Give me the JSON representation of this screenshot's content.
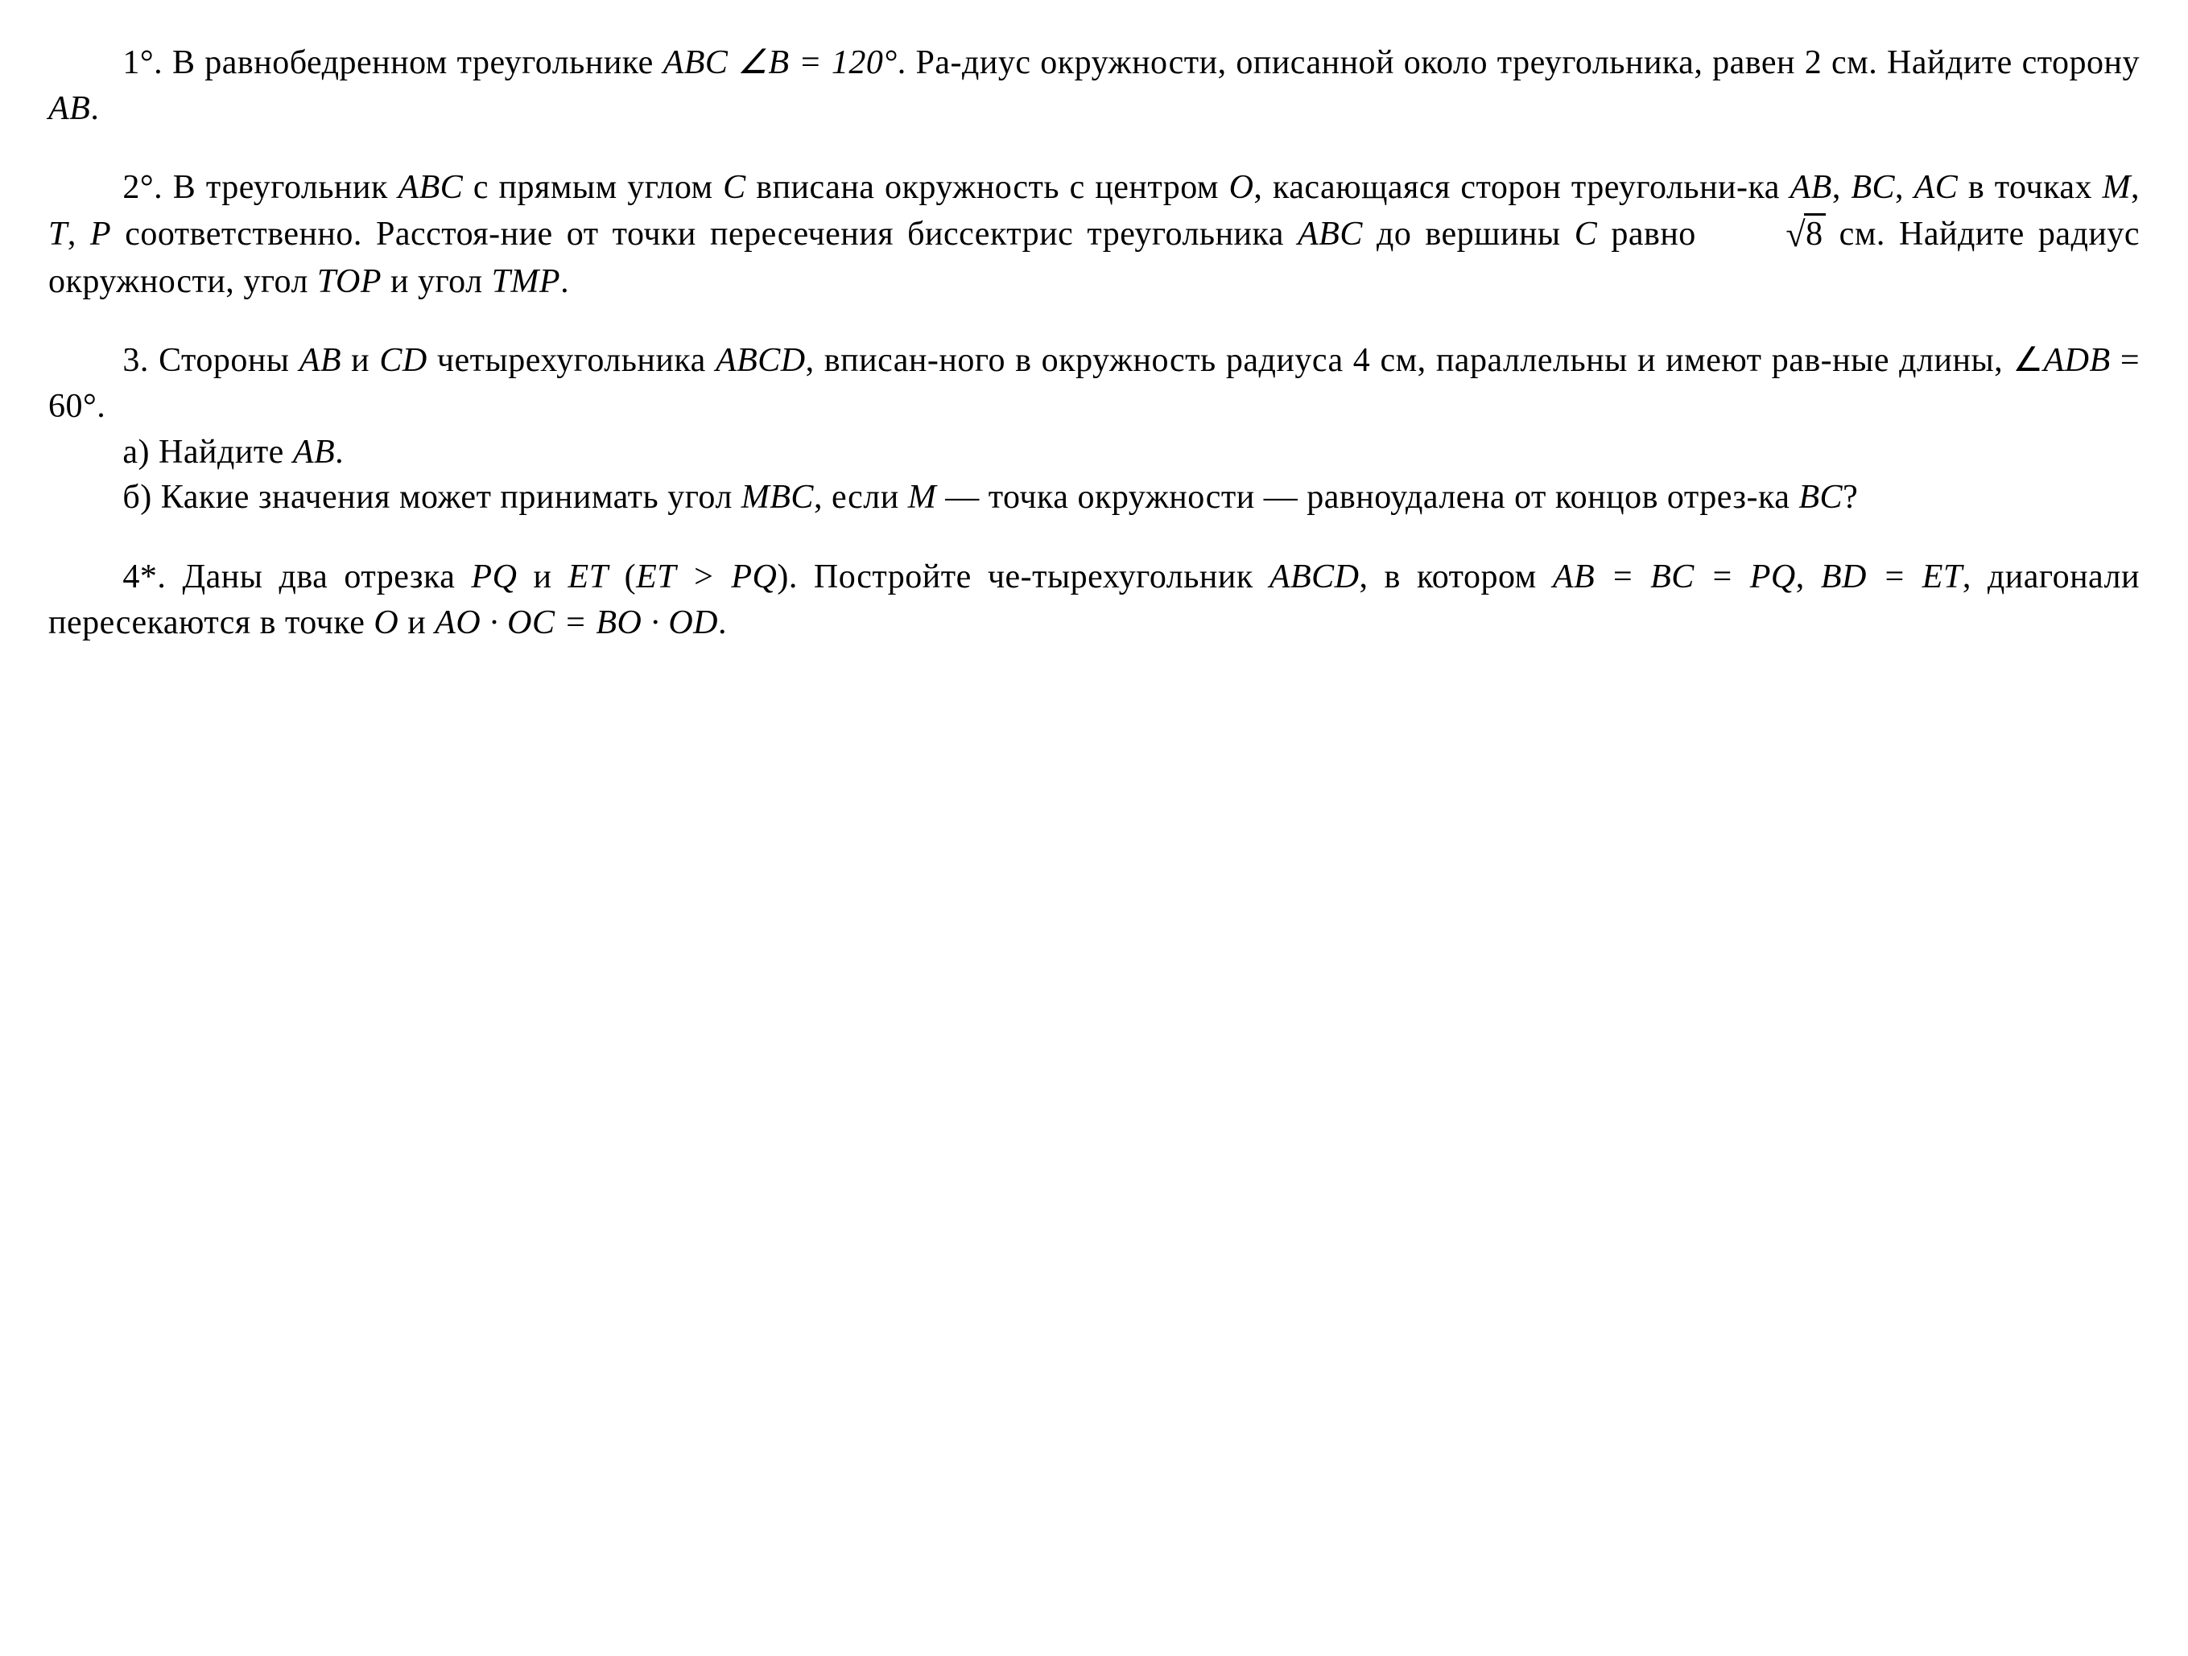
{
  "text_color": "#000000",
  "background_color": "#ffffff",
  "font_family": "Georgia, Times New Roman, serif",
  "base_fontsize_pt": 32,
  "problems": {
    "p1": {
      "marker": "1°.",
      "body_l1a": "В равнобедренном треугольнике ",
      "body_l1b_math": "ABC ∠B = 120°",
      "body_l1c": ". Ра-",
      "body_l2": "диус окружности, описанной около треугольника, равен 2 см. Найдите сторону ",
      "body_l2_math": "AB",
      "body_l2_end": "."
    },
    "p2": {
      "marker": "2°.",
      "l1a": "В треугольник ",
      "l1_m1": "ABC",
      "l1b": " с прямым углом ",
      "l1_m2": "C",
      "l1c": " вписана",
      "l2a": "окружность с центром ",
      "l2_m1": "O",
      "l2b": ", касающаяся сторон треугольни-",
      "l3a": "ка ",
      "l3_m1": "AB",
      "l3b": ", ",
      "l3_m2": "BC",
      "l3c": ", ",
      "l3_m3": "AC",
      "l3d": " в точках ",
      "l3_m4": "M",
      "l3e": ", ",
      "l3_m5": "T",
      "l3f": ", ",
      "l3_m6": "P",
      "l3g": " соответственно. Расстоя-",
      "l4a": "ние от точки пересечения биссектрис треугольника ",
      "l4_m1": "ABC",
      "l5a": "до вершины ",
      "l5_m1": "C",
      "l5b": " равно ",
      "l5_sqrt": "8",
      "l5c": " см. Найдите радиус окружности,",
      "l6a": "угол ",
      "l6_m1": "TOP",
      "l6b": " и угол ",
      "l6_m2": "TMP",
      "l6c": "."
    },
    "p3": {
      "marker": "3.",
      "l1a": "Стороны ",
      "l1_m1": "AB",
      "l1b": " и ",
      "l1_m2": "CD",
      "l1c": " четырехугольника ",
      "l1_m3": "ABCD",
      "l1d": ", вписан-",
      "l2a": "ного в окружность радиуса 4 см, параллельны и имеют рав-",
      "l3a": "ные длины, ",
      "l3_m1": "∠ADB = 60°",
      "l3b": ".",
      "sa_marker": "а)",
      "sa_text": "Найдите ",
      "sa_m1": "AB",
      "sa_end": ".",
      "sb_marker": "б)",
      "sb_l1a": "Какие значения может принимать угол ",
      "sb_l1_m1": "MBC",
      "sb_l1b": ", если",
      "sb_l2_m1": "M",
      "sb_l2a": " — точка окружности — равноудалена от концов отрез-",
      "sb_l3a": "ка ",
      "sb_l3_m1": "BC",
      "sb_l3b": "?"
    },
    "p4": {
      "marker": "4*.",
      "l1a": "Даны два отрезка ",
      "l1_m1": "PQ",
      "l1b": " и ",
      "l1_m2": "ET",
      "l1c": " (",
      "l1_m3": "ET > PQ",
      "l1d": "). Постройте че-",
      "l2a": "тырехугольник ",
      "l2_m1": "ABCD",
      "l2b": ", в котором ",
      "l2_m2": "AB = BC = PQ",
      "l2c": ", ",
      "l2_m3": "BD = ET",
      "l2d": ",",
      "l3a": "диагонали пересекаются в точке ",
      "l3_m1": "O",
      "l3b": " и ",
      "l3_m2": "AO · OC = BO · OD",
      "l3c": "."
    }
  }
}
